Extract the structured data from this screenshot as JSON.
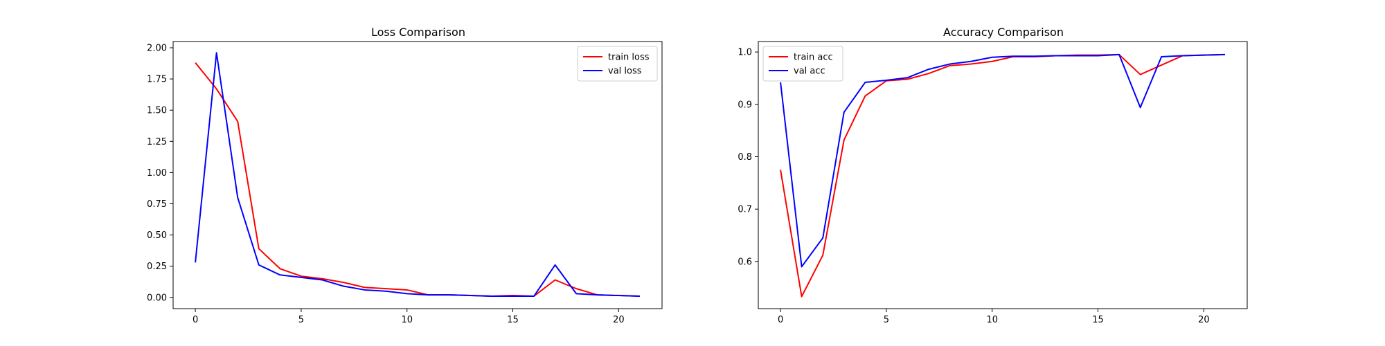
{
  "chart_data": [
    {
      "type": "line",
      "title": "Loss Comparison",
      "xlabel": "",
      "ylabel": "",
      "xlim": [
        -1.05,
        22.05
      ],
      "ylim": [
        -0.09,
        2.05
      ],
      "xticks": [
        0,
        5,
        10,
        15,
        20
      ],
      "yticks": [
        0.0,
        0.25,
        0.5,
        0.75,
        1.0,
        1.25,
        1.5,
        1.75,
        2.0
      ],
      "ytick_decimals": 2,
      "grid": false,
      "legend_position": "top-right",
      "x": [
        0,
        1,
        2,
        3,
        4,
        5,
        6,
        7,
        8,
        9,
        10,
        11,
        12,
        13,
        14,
        15,
        16,
        17,
        18,
        19,
        20,
        21
      ],
      "series": [
        {
          "name": "train loss",
          "color": "#ff0000",
          "values": [
            1.88,
            1.67,
            1.41,
            0.39,
            0.23,
            0.17,
            0.15,
            0.12,
            0.08,
            0.07,
            0.06,
            0.02,
            0.02,
            0.015,
            0.01,
            0.015,
            0.01,
            0.14,
            0.07,
            0.02,
            0.015,
            0.01
          ]
        },
        {
          "name": "val loss",
          "color": "#0000ff",
          "values": [
            0.28,
            1.96,
            0.8,
            0.26,
            0.18,
            0.16,
            0.14,
            0.09,
            0.06,
            0.05,
            0.03,
            0.02,
            0.02,
            0.015,
            0.01,
            0.01,
            0.01,
            0.26,
            0.03,
            0.02,
            0.015,
            0.01
          ]
        }
      ]
    },
    {
      "type": "line",
      "title": "Accuracy Comparison",
      "xlabel": "",
      "ylabel": "",
      "xlim": [
        -1.05,
        22.05
      ],
      "ylim": [
        0.51,
        1.02
      ],
      "xticks": [
        0,
        5,
        10,
        15,
        20
      ],
      "yticks": [
        0.6,
        0.7,
        0.8,
        0.9,
        1.0
      ],
      "ytick_decimals": 1,
      "grid": false,
      "legend_position": "top-left",
      "x": [
        0,
        1,
        2,
        3,
        4,
        5,
        6,
        7,
        8,
        9,
        10,
        11,
        12,
        13,
        14,
        15,
        16,
        17,
        18,
        19,
        20,
        21
      ],
      "series": [
        {
          "name": "train acc",
          "color": "#ff0000",
          "values": [
            0.775,
            0.533,
            0.612,
            0.832,
            0.916,
            0.945,
            0.948,
            0.959,
            0.974,
            0.977,
            0.982,
            0.991,
            0.991,
            0.993,
            0.994,
            0.994,
            0.995,
            0.957,
            0.975,
            0.993,
            0.994,
            0.995
          ]
        },
        {
          "name": "val acc",
          "color": "#0000ff",
          "values": [
            0.942,
            0.59,
            0.645,
            0.885,
            0.942,
            0.946,
            0.951,
            0.967,
            0.977,
            0.982,
            0.99,
            0.992,
            0.992,
            0.993,
            0.993,
            0.993,
            0.995,
            0.894,
            0.991,
            0.993,
            0.994,
            0.995
          ]
        }
      ]
    }
  ]
}
